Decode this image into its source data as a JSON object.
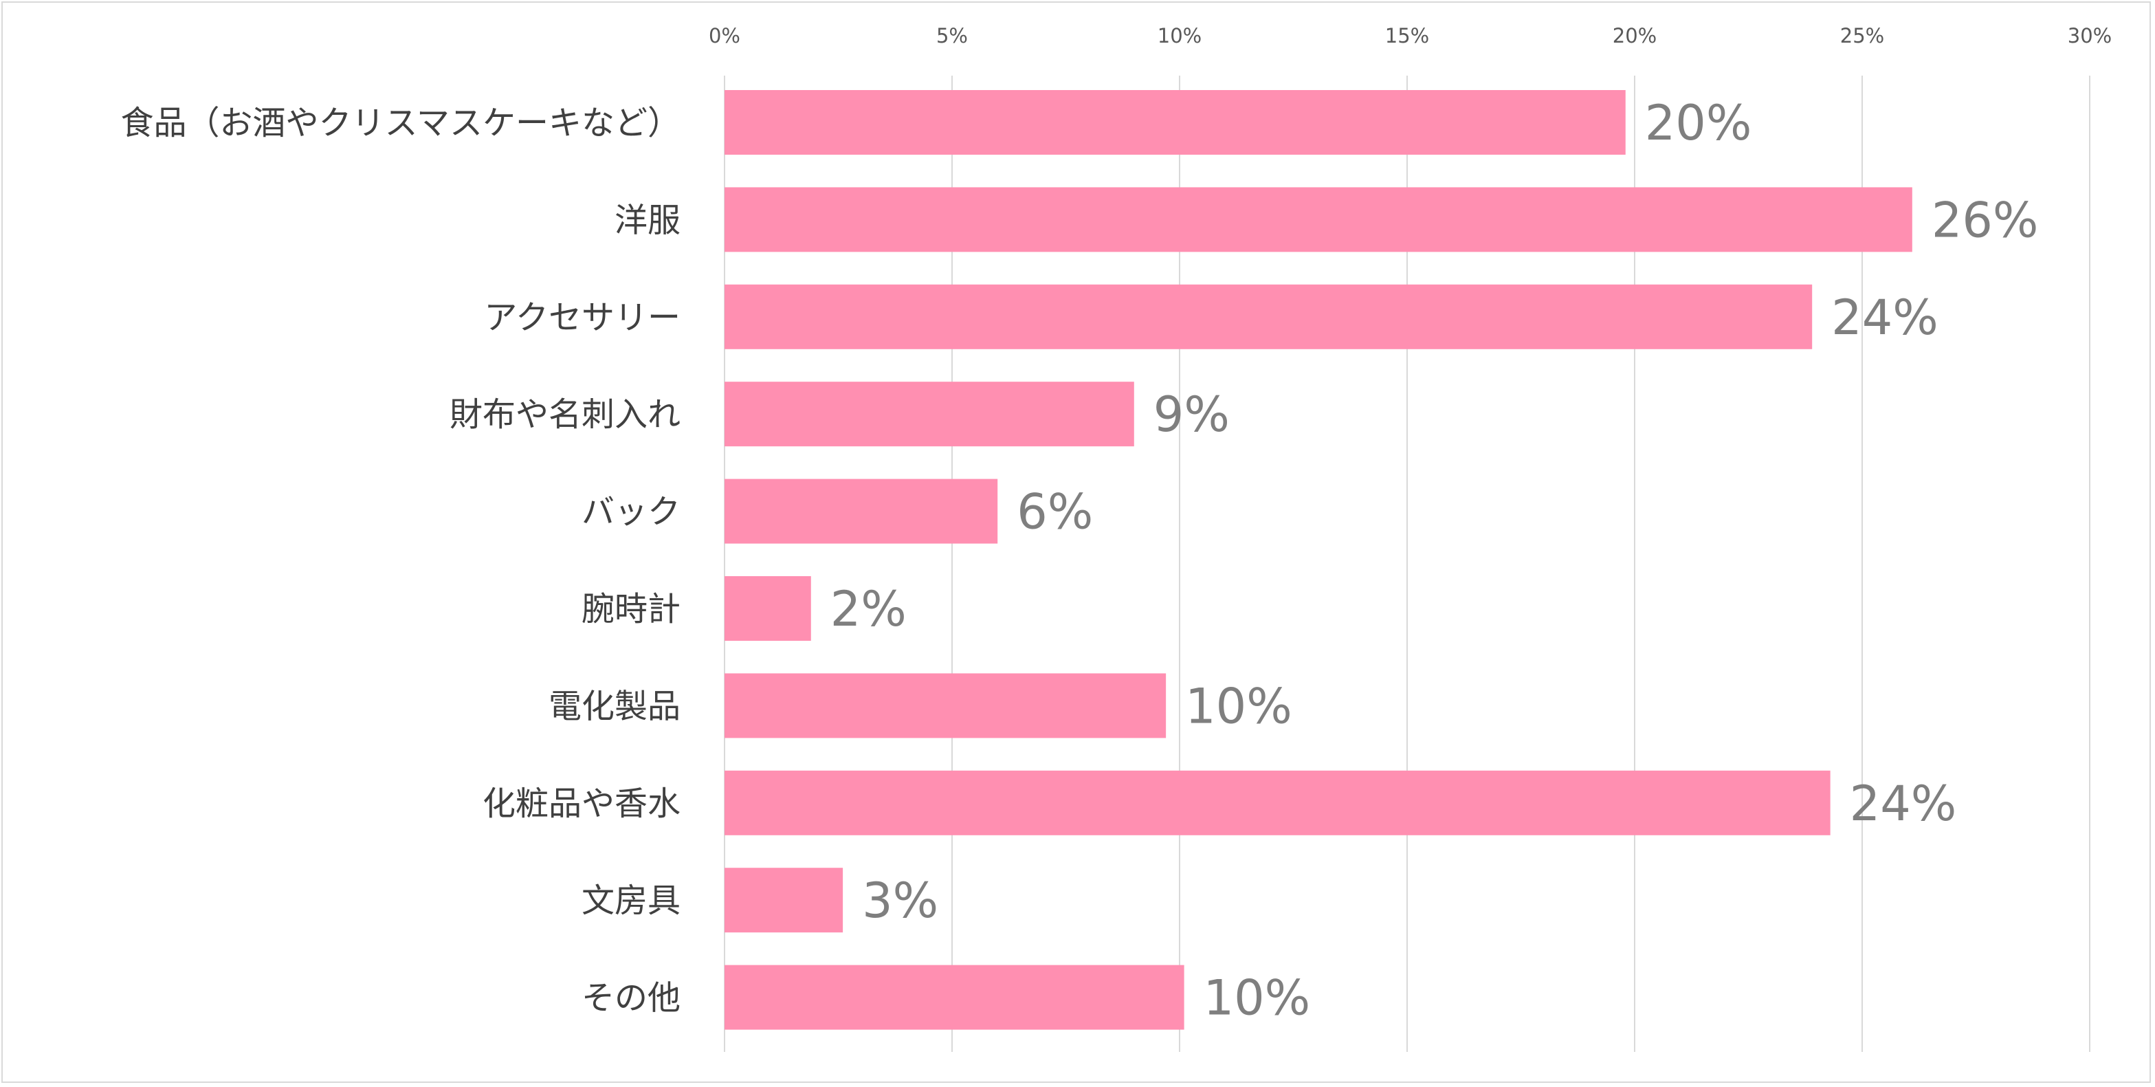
{
  "chart_data": {
    "type": "bar",
    "orientation": "horizontal",
    "title": "",
    "xlabel": "",
    "ylabel": "",
    "xlim": [
      0,
      30
    ],
    "x_ticks": [
      0,
      5,
      10,
      15,
      20,
      25,
      30
    ],
    "x_tick_labels": [
      "0%",
      "5%",
      "10%",
      "15%",
      "20%",
      "25%",
      "30%"
    ],
    "x_axis_position": "top",
    "grid": true,
    "legend": "none",
    "categories": [
      "食品（お酒やクリスマスケーキなど）",
      "洋服",
      "アクセサリー",
      "財布や名刺入れ",
      "バック",
      "腕時計",
      "電化製品",
      "化粧品や香水",
      "文房具",
      "その他"
    ],
    "values": [
      19.8,
      26.1,
      23.9,
      9.0,
      6.0,
      1.9,
      9.7,
      24.3,
      2.6,
      10.1
    ],
    "data_labels": [
      "20%",
      "26%",
      "24%",
      "9%",
      "6%",
      "2%",
      "10%",
      "24%",
      "3%",
      "10%"
    ],
    "colors": {
      "bar": "#FF8FB1",
      "grid": "#d9d9d9",
      "data_label": "#7f7f7f",
      "tick_label": "#595959",
      "category_label": "#404040"
    }
  }
}
